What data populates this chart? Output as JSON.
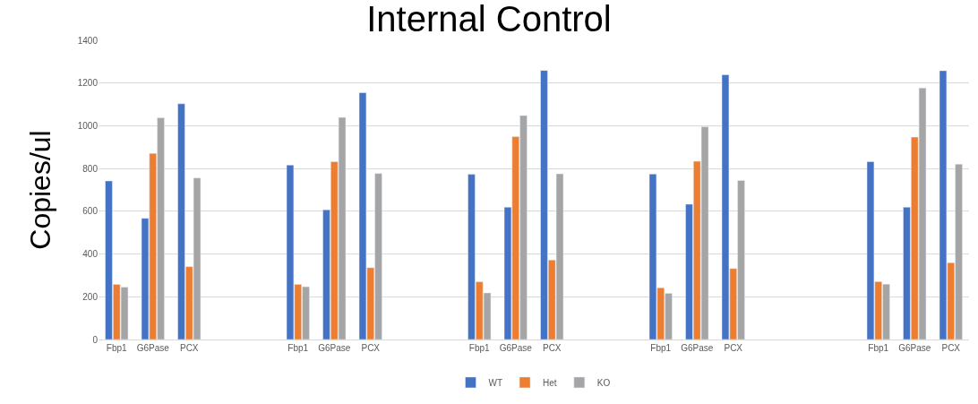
{
  "chart_data": {
    "type": "bar",
    "title": "Internal Control",
    "ylabel": "Copies/ul",
    "categories": [
      "Fbp1",
      "G6Pase",
      "PCX",
      null,
      null,
      "Fbp1",
      "G6Pase",
      "PCX",
      null,
      null,
      "Fbp1",
      "G6Pase",
      "PCX",
      null,
      null,
      "Fbp1",
      "G6Pase",
      "PCX",
      null,
      null,
      null,
      "Fbp1",
      "G6Pase",
      "PCX"
    ],
    "series": [
      {
        "name": "WT",
        "color": "#4472c4",
        "values": [
          742,
          567,
          1103,
          null,
          null,
          816,
          607,
          1155,
          null,
          null,
          773,
          619,
          1259,
          null,
          null,
          774,
          633,
          1239,
          null,
          null,
          null,
          832,
          619,
          1258
        ]
      },
      {
        "name": "Het",
        "color": "#ed7d31",
        "values": [
          258,
          871,
          341,
          null,
          null,
          258,
          832,
          336,
          null,
          null,
          270,
          949,
          372,
          null,
          null,
          242,
          834,
          332,
          null,
          null,
          null,
          271,
          947,
          359
        ]
      },
      {
        "name": "KO",
        "color": "#a5a5a5",
        "values": [
          245,
          1037,
          756,
          null,
          null,
          247,
          1039,
          777,
          null,
          null,
          218,
          1048,
          775,
          null,
          null,
          216,
          996,
          744,
          null,
          null,
          null,
          259,
          1177,
          820
        ]
      }
    ],
    "ylim": [
      0,
      1400
    ],
    "yticks": [
      0,
      200,
      400,
      600,
      800,
      1000,
      1200,
      1400
    ],
    "grid": "y",
    "legend": "bottom"
  }
}
